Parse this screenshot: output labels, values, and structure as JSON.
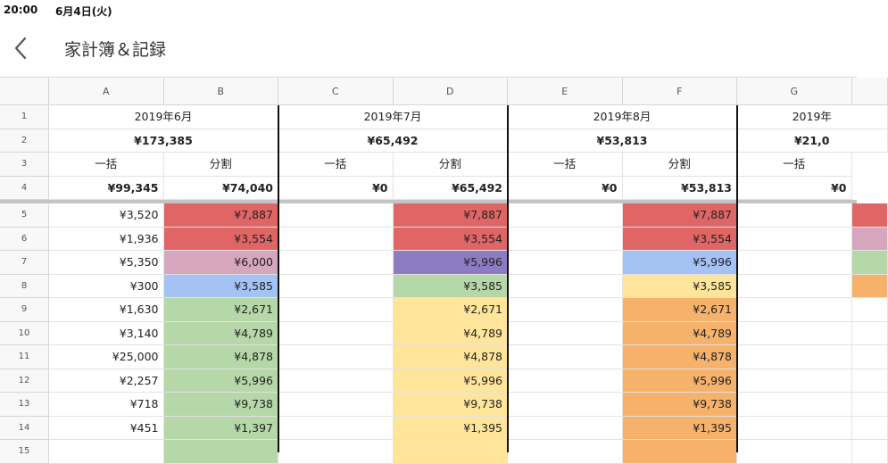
{
  "status": {
    "time": "20:00",
    "date": "6月4日(火)"
  },
  "header": {
    "title": "家計簿＆記録"
  },
  "columns": [
    "A",
    "B",
    "C",
    "D",
    "E",
    "F",
    "G"
  ],
  "row_numbers": [
    "1",
    "2",
    "3",
    "4",
    "5",
    "6",
    "7",
    "8",
    "9",
    "10",
    "11",
    "12",
    "13",
    "14",
    "15"
  ],
  "months": [
    {
      "label": "2019年6月",
      "total": "¥173,385",
      "lump_label": "一括",
      "split_label": "分割",
      "lump_total": "¥99,345",
      "split_total": "¥74,040"
    },
    {
      "label": "2019年7月",
      "total": "¥65,492",
      "lump_label": "一括",
      "split_label": "分割",
      "lump_total": "¥0",
      "split_total": "¥65,492"
    },
    {
      "label": "2019年8月",
      "total": "¥53,813",
      "lump_label": "一括",
      "split_label": "分割",
      "lump_total": "¥0",
      "split_total": "¥53,813"
    },
    {
      "label": "2019年",
      "total": "¥21,0",
      "lump_label": "一括",
      "lump_total": "¥0"
    }
  ],
  "rows": [
    {
      "a": "¥3,520",
      "b": "¥7,887",
      "c": "",
      "d": "¥7,887",
      "e": "",
      "f": "¥7,887",
      "g": ""
    },
    {
      "a": "¥1,936",
      "b": "¥3,554",
      "c": "",
      "d": "¥3,554",
      "e": "",
      "f": "¥3,554",
      "g": ""
    },
    {
      "a": "¥5,350",
      "b": "¥6,000",
      "c": "",
      "d": "¥5,996",
      "e": "",
      "f": "¥5,996",
      "g": ""
    },
    {
      "a": "¥300",
      "b": "¥3,585",
      "c": "",
      "d": "¥3,585",
      "e": "",
      "f": "¥3,585",
      "g": ""
    },
    {
      "a": "¥1,630",
      "b": "¥2,671",
      "c": "",
      "d": "¥2,671",
      "e": "",
      "f": "¥2,671",
      "g": ""
    },
    {
      "a": "¥3,140",
      "b": "¥4,789",
      "c": "",
      "d": "¥4,789",
      "e": "",
      "f": "¥4,789",
      "g": ""
    },
    {
      "a": "¥25,000",
      "b": "¥4,878",
      "c": "",
      "d": "¥4,878",
      "e": "",
      "f": "¥4,878",
      "g": ""
    },
    {
      "a": "¥2,257",
      "b": "¥5,996",
      "c": "",
      "d": "¥5,996",
      "e": "",
      "f": "¥5,996",
      "g": ""
    },
    {
      "a": "¥718",
      "b": "¥9,738",
      "c": "",
      "d": "¥9,738",
      "e": "",
      "f": "¥9,738",
      "g": ""
    },
    {
      "a": "¥451",
      "b": "¥1,397",
      "c": "",
      "d": "¥1,395",
      "e": "",
      "f": "¥1,395",
      "g": ""
    },
    {
      "a": "",
      "b": "",
      "c": "",
      "d": "",
      "e": "",
      "f": "",
      "g": ""
    }
  ],
  "fills": {
    "B": [
      "#e06666",
      "#e06666",
      "#d5a6bd",
      "#a4c2f4",
      "#b6d7a8",
      "#b6d7a8",
      "#b6d7a8",
      "#b6d7a8",
      "#b6d7a8",
      "#b6d7a8",
      "#b6d7a8"
    ],
    "D": [
      "#e06666",
      "#e06666",
      "#8e7cc3",
      "#b6d7a8",
      "#ffe599",
      "#ffe599",
      "#ffe599",
      "#ffe599",
      "#ffe599",
      "#ffe599",
      "#ffe599"
    ],
    "F": [
      "#e06666",
      "#e06666",
      "#a4c2f4",
      "#ffe599",
      "#f6b26b",
      "#f6b26b",
      "#f6b26b",
      "#f6b26b",
      "#f6b26b",
      "#f6b26b",
      "#f6b26b"
    ],
    "H": [
      "#e06666",
      "#d5a6bd",
      "#b6d7a8",
      "#f6b26b",
      "",
      "",
      "",
      "",
      "",
      "",
      ""
    ]
  }
}
